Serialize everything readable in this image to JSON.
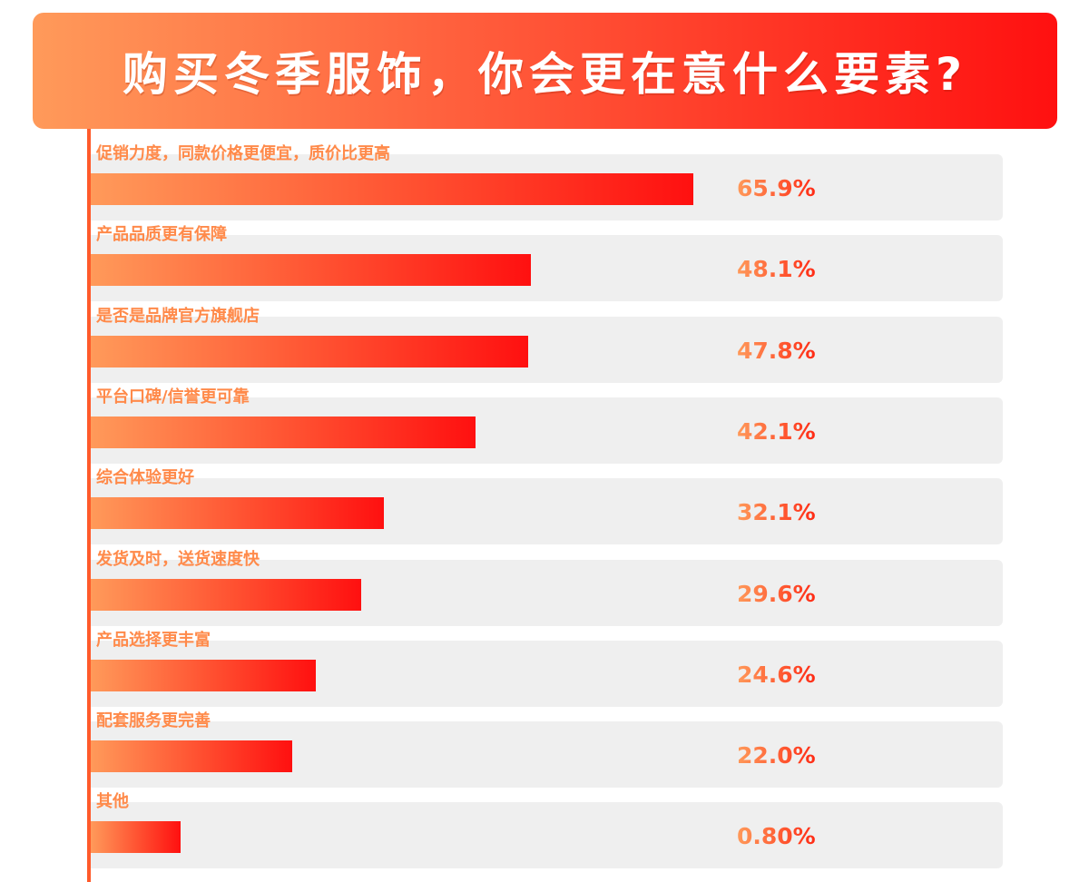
{
  "title": "购买冬季服饰，你会更在意什么要素?",
  "chart_data": {
    "type": "bar",
    "orientation": "horizontal",
    "categories": [
      "促销力度，同款价格更便宜，质价比更高",
      "产品品质更有保障",
      "是否是品牌官方旗舰店",
      "平台口碑/信誉更可靠",
      "综合体验更好",
      "发货及时，送货速度快",
      "产品选择更丰富",
      "配套服务更完善",
      "其他"
    ],
    "values": [
      65.9,
      48.1,
      47.8,
      42.1,
      32.1,
      29.6,
      24.6,
      22.0,
      0.8
    ],
    "value_labels": [
      "65.9%",
      "48.1%",
      "47.8%",
      "42.1%",
      "32.1%",
      "29.6%",
      "24.6%",
      "22.0%",
      "0.80%"
    ],
    "unit": "%",
    "colors": {
      "bar_start": "#ff9a5a",
      "bar_end": "#ff1010",
      "row_background": "#efefef",
      "label": "#ff8a4a"
    }
  }
}
